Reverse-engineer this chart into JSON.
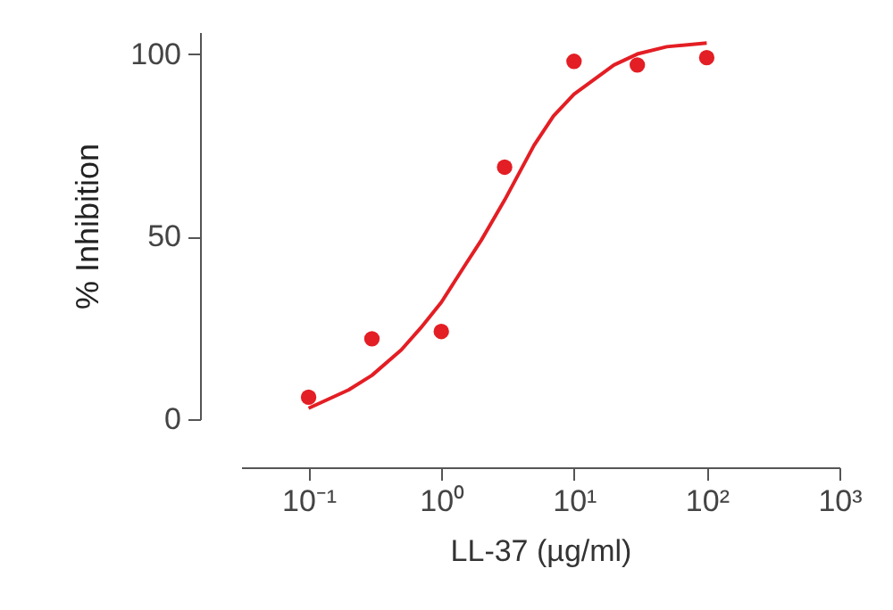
{
  "chart_data": {
    "type": "scatter",
    "xlabel": "LL-37 (µg/ml)",
    "ylabel": "% Inhibition",
    "log": "x",
    "marker": "circle",
    "grid": false,
    "xlim": [
      0.031,
      1000
    ],
    "ylim": [
      0,
      106
    ],
    "xticks": [
      {
        "value": 0.1,
        "label": "10⁻¹"
      },
      {
        "value": 1,
        "label": "10⁰"
      },
      {
        "value": 10,
        "label": "10¹"
      },
      {
        "value": 100,
        "label": "10²"
      },
      {
        "value": 1000,
        "label": "10³"
      }
    ],
    "yticks": [
      0,
      50,
      100
    ],
    "series": [
      {
        "color": "#e31e24",
        "x": [
          0.1,
          0.3,
          1,
          3,
          10,
          30,
          100
        ],
        "values": [
          6,
          22,
          24,
          69,
          98,
          97,
          99
        ]
      },
      {
        "type": "line",
        "color": "#e31e24",
        "marker": "none",
        "line_style": "solid",
        "x": [
          0.1,
          0.2,
          0.3,
          0.5,
          0.7,
          1,
          1.5,
          2,
          3,
          5,
          7,
          10,
          20,
          30,
          50,
          100
        ],
        "values": [
          3,
          8,
          12,
          19,
          25,
          32,
          42,
          49,
          60,
          75,
          83,
          89,
          97,
          100,
          102,
          103
        ]
      }
    ]
  }
}
